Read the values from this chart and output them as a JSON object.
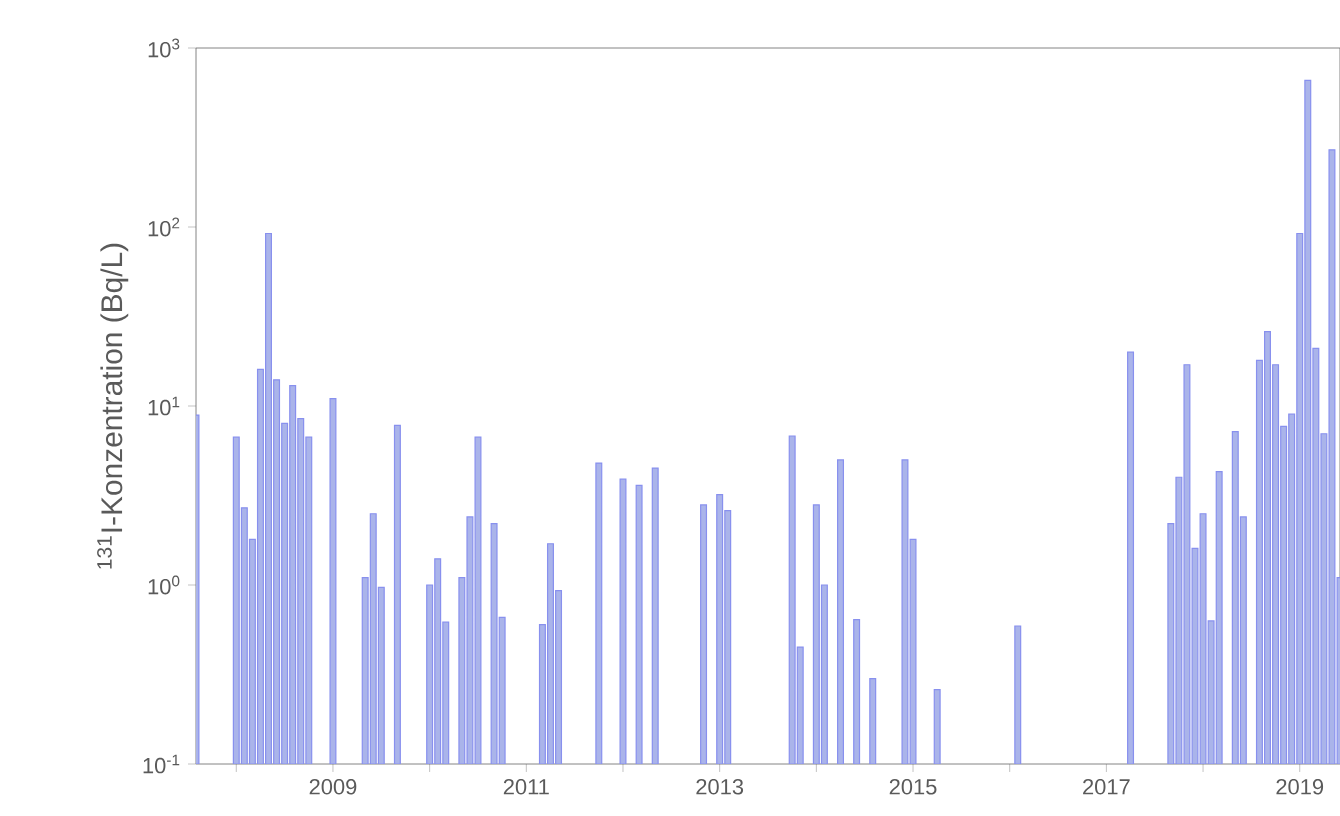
{
  "chart_data": {
    "type": "bar",
    "ylabel": "$^{131}$I-Konzentration (Bq/L)",
    "log": "y",
    "color": "#aab4ea",
    "x": [
      "2007-08",
      "2008-01",
      "2008-02",
      "2008-03",
      "2008-04",
      "2008-05",
      "2008-06",
      "2008-07",
      "2008-08",
      "2008-09",
      "2008-10",
      "2009-01",
      "2009-05",
      "2009-06",
      "2009-07",
      "2009-09",
      "2010-01",
      "2010-02",
      "2010-03",
      "2010-05",
      "2010-06",
      "2010-07",
      "2010-09",
      "2010-10",
      "2011-03",
      "2011-04",
      "2011-05",
      "2011-10",
      "2012-01",
      "2012-03",
      "2012-05",
      "2012-11",
      "2013-01",
      "2013-02",
      "2013-10",
      "2013-11",
      "2014-01",
      "2014-02",
      "2014-04",
      "2014-06",
      "2014-08",
      "2014-12",
      "2015-01",
      "2015-04",
      "2016-02",
      "2017-04",
      "2017-09",
      "2017-10",
      "2017-11",
      "2017-12",
      "2018-01",
      "2018-02",
      "2018-03",
      "2018-05",
      "2018-06",
      "2018-08",
      "2018-09",
      "2018-10",
      "2018-11",
      "2018-12",
      "2019-01",
      "2019-02",
      "2019-03",
      "2019-04",
      "2019-05",
      "2019-06"
    ],
    "values": [
      8.9,
      6.7,
      2.7,
      1.8,
      16,
      92,
      14,
      8,
      13,
      8.5,
      6.7,
      11,
      1.1,
      2.5,
      0.97,
      7.8,
      1.0,
      1.4,
      0.62,
      1.1,
      2.4,
      6.7,
      2.2,
      0.66,
      0.6,
      1.7,
      0.93,
      4.8,
      3.9,
      3.6,
      4.5,
      2.8,
      3.2,
      2.6,
      6.8,
      0.45,
      2.8,
      1.0,
      5,
      0.64,
      0.3,
      5,
      1.8,
      0.26,
      0.59,
      20,
      2.2,
      4,
      17,
      1.6,
      2.5,
      0.63,
      4.3,
      7.2,
      2.4,
      18,
      26,
      17,
      7.7,
      9,
      92,
      660,
      21,
      7,
      270,
      1.1
    ],
    "xlim": [
      "2007-08",
      "2019-06"
    ],
    "xticks": [
      {
        "value": "2008",
        "label": null
      },
      {
        "value": "2009",
        "label": "2009"
      },
      {
        "value": "2010",
        "label": null
      },
      {
        "value": "2011",
        "label": "2011"
      },
      {
        "value": "2012",
        "label": null
      },
      {
        "value": "2013",
        "label": "2013"
      },
      {
        "value": "2014",
        "label": null
      },
      {
        "value": "2015",
        "label": "2015"
      },
      {
        "value": "2016",
        "label": null
      },
      {
        "value": "2017",
        "label": "2017"
      },
      {
        "value": "2018",
        "label": null
      },
      {
        "value": "2019",
        "label": "2019"
      }
    ],
    "ylim": [
      0.1,
      1000
    ],
    "yticks": [
      {
        "value": 0.1,
        "label": "10$^{-1}$"
      },
      {
        "value": 1,
        "label": "10$^{0}$"
      },
      {
        "value": 10,
        "label": "10$^{1}$"
      },
      {
        "value": 100,
        "label": "10$^{2}$"
      },
      {
        "value": 1000,
        "label": "10$^{3}$"
      }
    ]
  }
}
